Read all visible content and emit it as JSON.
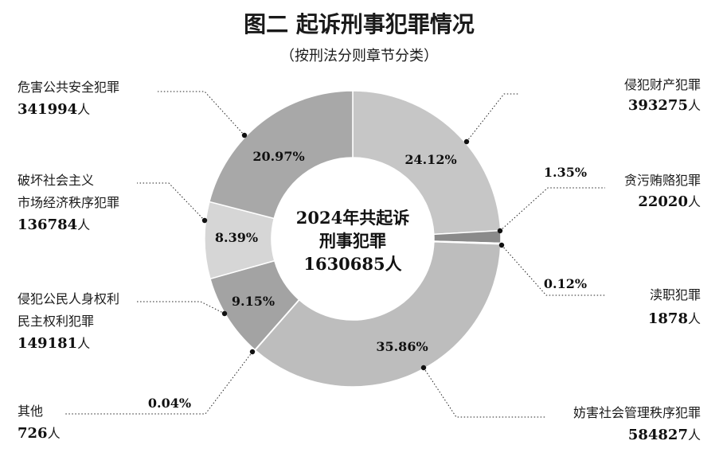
{
  "chart_data": {
    "type": "pie",
    "title": "图二  起诉刑事犯罪情况",
    "subtitle": "（按刑法分则章节分类）",
    "center_label": [
      "2024年共起诉",
      "刑事犯罪",
      "1630685人"
    ],
    "unit": "人",
    "slices": [
      {
        "name_lines": [
          "侵犯财产犯罪"
        ],
        "value": 393275,
        "percent": "24.12%",
        "color": "#c6c6c6"
      },
      {
        "name_lines": [
          "贪污贿赂犯罪"
        ],
        "value": 22020,
        "percent": "1.35%",
        "color": "#8a8a8a"
      },
      {
        "name_lines": [
          "渎职犯罪"
        ],
        "value": 1878,
        "percent": "0.12%",
        "color": "#6e6e6e"
      },
      {
        "name_lines": [
          "妨害社会管理秩序犯罪"
        ],
        "value": 584827,
        "percent": "35.86%",
        "color": "#bdbdbd"
      },
      {
        "name_lines": [
          "其他"
        ],
        "value": 726,
        "percent": "0.04%",
        "color": "#555555"
      },
      {
        "name_lines": [
          "侵犯公民人身权利",
          "民主权利犯罪"
        ],
        "value": 149181,
        "percent": "9.15%",
        "color": "#a3a3a3"
      },
      {
        "name_lines": [
          "破坏社会主义",
          "市场经济秩序犯罪"
        ],
        "value": 136784,
        "percent": "8.39%",
        "color": "#d6d6d6"
      },
      {
        "name_lines": [
          "危害公共安全犯罪"
        ],
        "value": 341994,
        "percent": "20.97%",
        "color": "#a8a8a8"
      }
    ]
  }
}
